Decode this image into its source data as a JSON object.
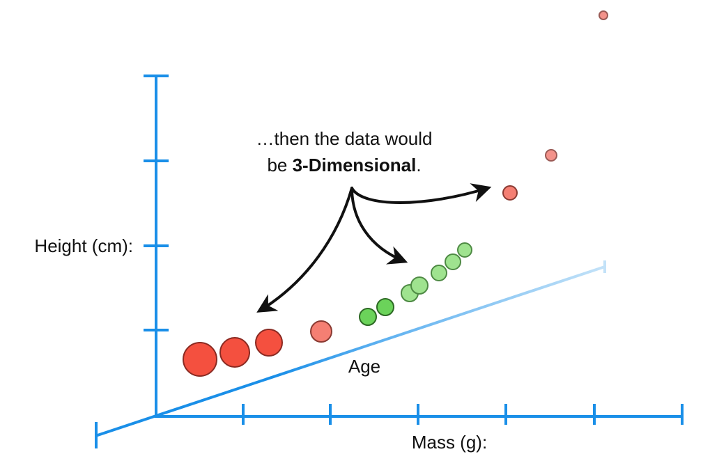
{
  "diagram": {
    "y_axis_label": "Height (cm):",
    "x_axis_label": "Mass (g):",
    "z_axis_label": "Age",
    "annotation": {
      "line1": "…then the data would",
      "line2_prefix": "be ",
      "line2_bold": "3-Dimensional",
      "line2_suffix": "."
    },
    "colors": {
      "axis": "#1a8fe8",
      "axis_faded": "#b9dcf6",
      "red_point": "#f4503f",
      "red_point_faded": "#f3928a",
      "green_point": "#6bd35a",
      "green_point_light": "#9fe38f",
      "arrow": "#111111"
    },
    "points": [
      {
        "group": "red",
        "shade": "strong"
      },
      {
        "group": "red",
        "shade": "strong"
      },
      {
        "group": "red",
        "shade": "strong"
      },
      {
        "group": "red",
        "shade": "medium"
      },
      {
        "group": "green",
        "shade": "strong"
      },
      {
        "group": "green",
        "shade": "strong"
      },
      {
        "group": "green",
        "shade": "light"
      },
      {
        "group": "green",
        "shade": "light"
      },
      {
        "group": "green",
        "shade": "light"
      },
      {
        "group": "green",
        "shade": "light"
      },
      {
        "group": "green",
        "shade": "light"
      },
      {
        "group": "red",
        "shade": "medium"
      },
      {
        "group": "red",
        "shade": "faded"
      },
      {
        "group": "red",
        "shade": "faded"
      }
    ]
  }
}
